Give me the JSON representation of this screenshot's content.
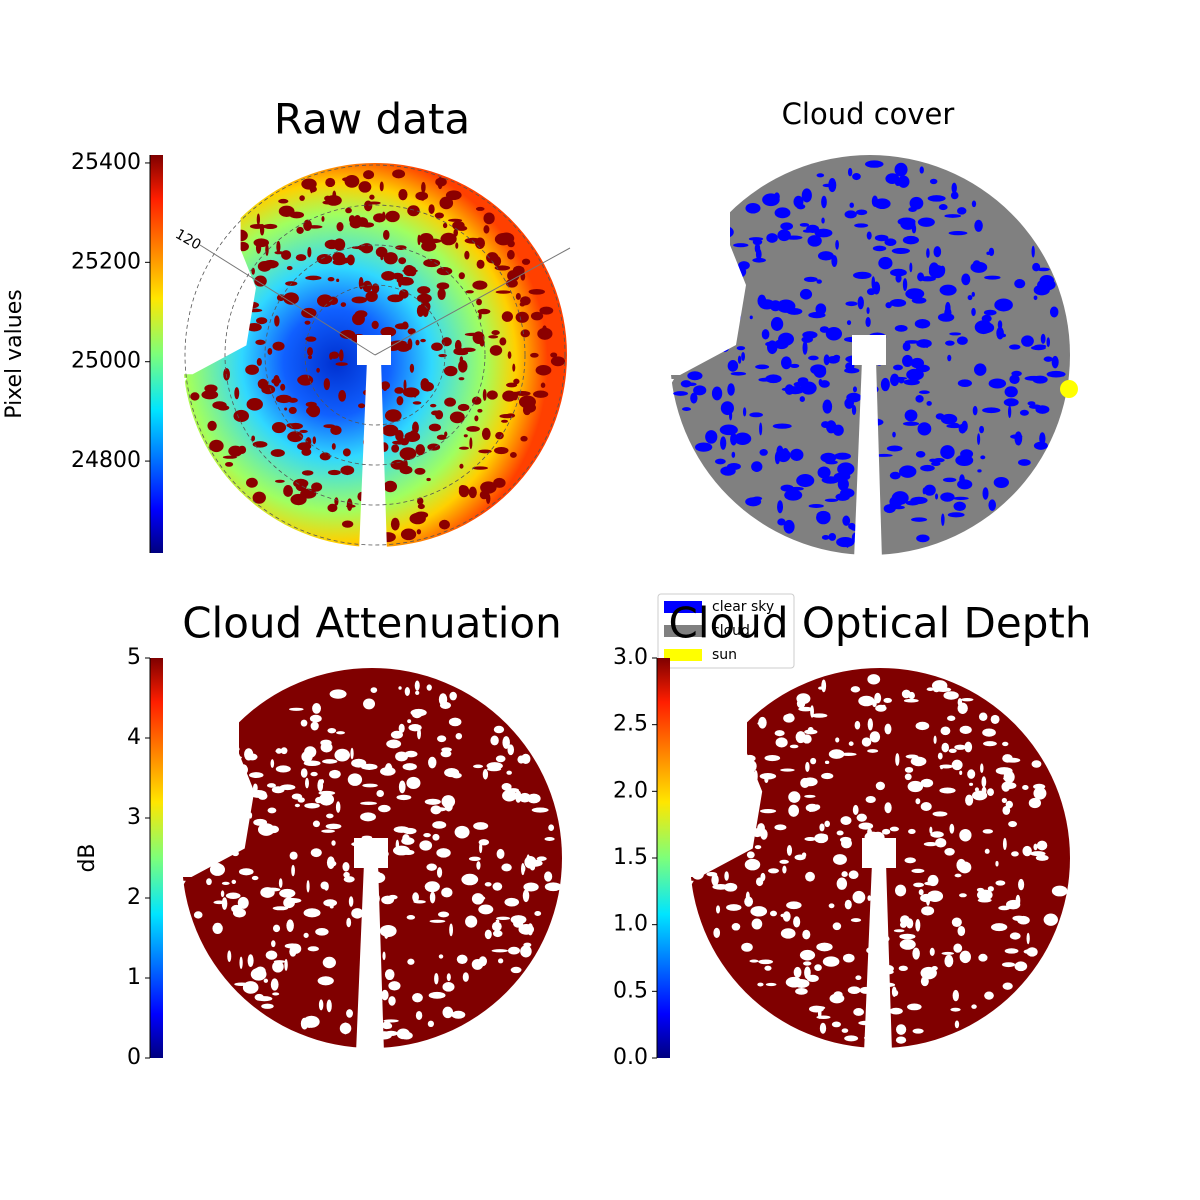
{
  "chart_data": [
    {
      "type": "image",
      "title": "Raw data",
      "colormap": "jet",
      "ylabel": "Pixel values",
      "ylim": [
        24615,
        25416
      ],
      "yticks": [
        24800,
        25000,
        25200,
        25400
      ],
      "polar_labels": [
        "120"
      ]
    },
    {
      "type": "image",
      "title": "Cloud cover",
      "series": [
        {
          "name": "clear sky",
          "color": "#0000ff"
        },
        {
          "name": "cloud",
          "color": "#808080"
        },
        {
          "name": "sun",
          "color": "#ffff00"
        }
      ]
    },
    {
      "type": "image",
      "title": "Cloud Attenuation",
      "colormap": "jet",
      "ylabel": "dB",
      "color": "#800000",
      "ylim": [
        0,
        5
      ],
      "yticks": [
        0,
        1,
        2,
        3,
        4,
        5
      ]
    },
    {
      "type": "image",
      "title": "Cloud Optical Depth",
      "colormap": "jet",
      "color": "#800000",
      "ylim": [
        0,
        3
      ],
      "yticks": [
        {
          "value": 0,
          "label": "0.0"
        },
        {
          "value": 0.5,
          "label": "0.5"
        },
        {
          "value": 1,
          "label": "1.0"
        },
        {
          "value": 1.5,
          "label": "1.5"
        },
        {
          "value": 2,
          "label": "2.0"
        },
        {
          "value": 2.5,
          "label": "2.5"
        },
        {
          "value": 3,
          "label": "3.0"
        }
      ]
    }
  ]
}
